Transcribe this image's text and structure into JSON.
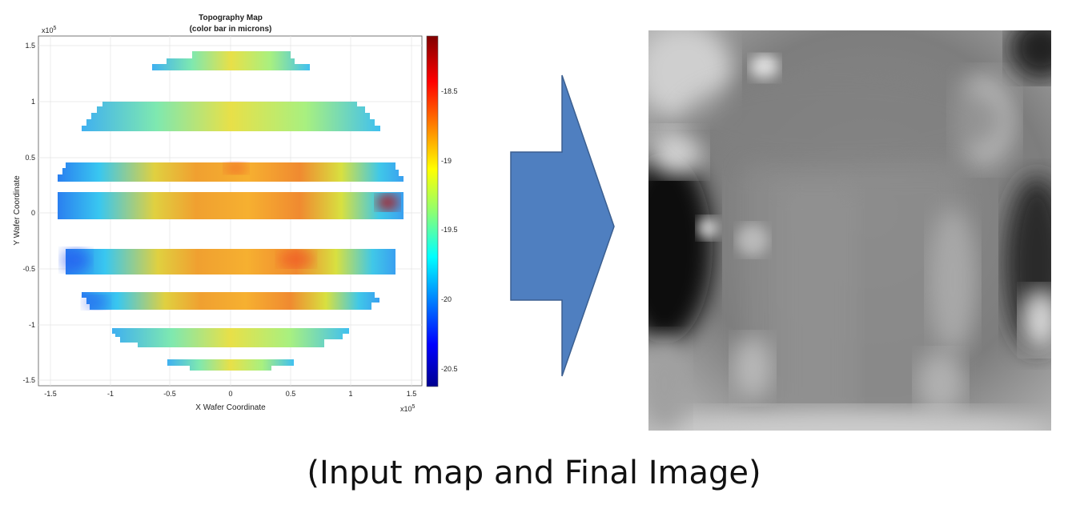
{
  "left_panel": {
    "title": "Topography Map",
    "subtitle": "(color bar in microns)",
    "x_axis_label": "X Wafer Coordinate",
    "y_axis_label": "Y Wafer Coordinate",
    "x_exponent": "x10",
    "x_exponent_power": "5",
    "y_exponent": "x10",
    "y_exponent_power": "5",
    "x_ticks": [
      "-1.5",
      "-1",
      "-0.5",
      "0",
      "0.5",
      "1",
      "1.5"
    ],
    "y_ticks": [
      "1.5",
      "1",
      "0.5",
      "0",
      "-0.5",
      "-1",
      "-1.5"
    ],
    "colorbar_ticks": [
      "-18.5",
      "-19",
      "-19.5",
      "-20",
      "-20.5"
    ]
  },
  "arrow": {
    "color": "#4f7fc0",
    "icon": "right-arrow-icon"
  },
  "right_panel": {
    "description_icon": "grayscale-image"
  },
  "caption": "(Input map and Final Image)"
}
